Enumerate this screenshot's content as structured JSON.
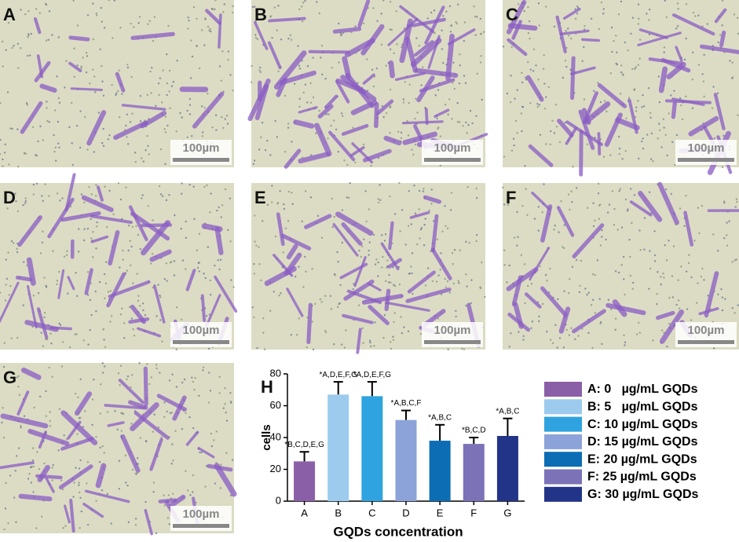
{
  "panels": [
    {
      "label": "A",
      "scale": "100µm"
    },
    {
      "label": "B",
      "scale": "100µm"
    },
    {
      "label": "C",
      "scale": "100µm"
    },
    {
      "label": "D",
      "scale": "100µm"
    },
    {
      "label": "E",
      "scale": "100µm"
    },
    {
      "label": "F",
      "scale": "100µm"
    },
    {
      "label": "G",
      "scale": "100µm"
    }
  ],
  "chart_data": {
    "type": "bar",
    "panel_label": "H",
    "y_label": "cells",
    "x_label": "GQDs concentration",
    "categories": [
      "A",
      "B",
      "C",
      "D",
      "E",
      "F",
      "G"
    ],
    "values": [
      25,
      67,
      66,
      51,
      38,
      36,
      41
    ],
    "errors": [
      6,
      8,
      9,
      6,
      10,
      4,
      11
    ],
    "annotations": [
      "*B,C,D,E,G",
      "*A,D,E,F,G",
      "*A,D,E,F,G",
      "*A,B,C,F",
      "*A,B,C",
      "*B,C,D",
      "*A,B,C"
    ],
    "colors": [
      "#8b5fa8",
      "#9ccbee",
      "#2fa3df",
      "#8ba3d8",
      "#0c6db4",
      "#7b72b8",
      "#223488"
    ],
    "legend": [
      "A: 0   µg/mL GQDs",
      "B: 5   µg/mL GQDs",
      "C: 10 µg/mL GQDs",
      "D: 15 µg/mL GQDs",
      "E: 20 µg/mL GQDs",
      "F: 25 µg/mL GQDs",
      "G: 30 µg/mL GQDs"
    ],
    "ylim": [
      0,
      80
    ],
    "yticks": [
      0,
      20,
      40,
      60,
      80
    ]
  }
}
